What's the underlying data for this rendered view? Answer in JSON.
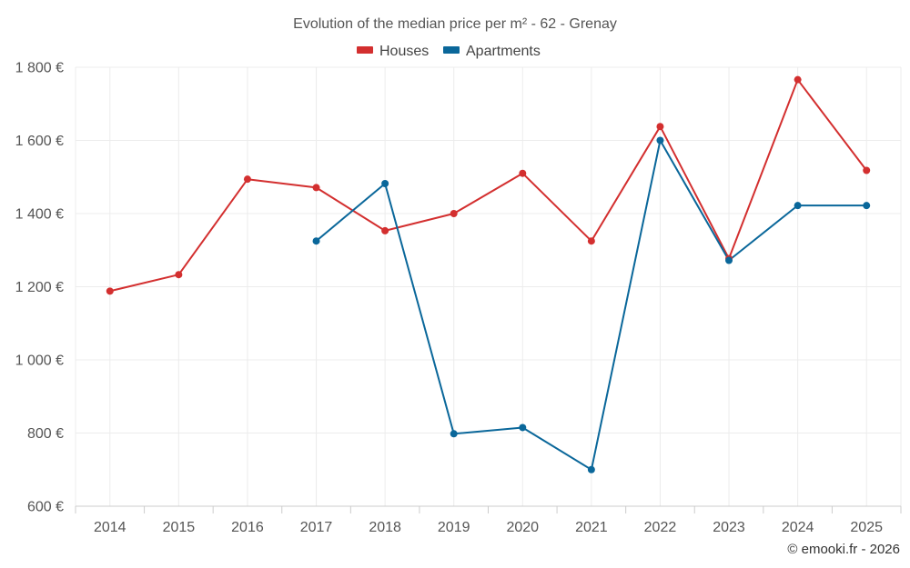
{
  "chart_data": {
    "type": "line",
    "title": "Evolution of the median price per m² - 62 - Grenay",
    "categories": [
      "2014",
      "2015",
      "2016",
      "2017",
      "2018",
      "2019",
      "2020",
      "2021",
      "2022",
      "2023",
      "2024",
      "2025"
    ],
    "series": [
      {
        "name": "Houses",
        "color": "#d32f2f",
        "values": [
          1188,
          1233,
          1494,
          1471,
          1353,
          1400,
          1510,
          1325,
          1638,
          1277,
          1766,
          1518
        ]
      },
      {
        "name": "Apartments",
        "color": "#0a679a",
        "values": [
          null,
          null,
          null,
          1325,
          1482,
          798,
          815,
          700,
          1600,
          1272,
          1422,
          1422
        ]
      }
    ],
    "ylim": [
      600,
      1800
    ],
    "yticks": [
      600,
      800,
      1000,
      1200,
      1400,
      1600,
      1800
    ],
    "ytick_labels": [
      "600 €",
      "800 €",
      "1 000 €",
      "1 200 €",
      "1 400 €",
      "1 600 €",
      "1 800 €"
    ],
    "legend_position": "top-center",
    "grid": true
  },
  "credit": "© emooki.fr - 2026"
}
